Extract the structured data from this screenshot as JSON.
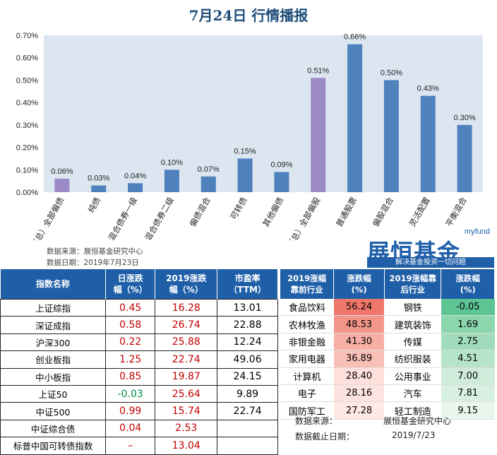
{
  "title": "7月24日  行情播报",
  "chart_data": {
    "type": "bar",
    "categories": [
      "（总）全部偏债",
      "纯债",
      "混合债券一级",
      "混合债券二级",
      "偏债混合",
      "可转债",
      "其他偏债",
      "（总）全部偏股",
      "普通股票",
      "偏股混合",
      "灵活配置",
      "平衡混合"
    ],
    "values": [
      0.06,
      0.03,
      0.04,
      0.1,
      0.07,
      0.15,
      0.09,
      0.51,
      0.66,
      0.5,
      0.43,
      0.3
    ],
    "data_labels": [
      "0.06%",
      "0.03%",
      "0.04%",
      "0.10%",
      "0.07%",
      "0.15%",
      "0.09%",
      "0.51%",
      "0.66%",
      "0.50%",
      "0.43%",
      "0.30%"
    ],
    "highlighted": [
      0,
      7
    ],
    "ylim": [
      0,
      0.7
    ],
    "yticks": [
      "0.00%",
      "0.10%",
      "0.20%",
      "0.30%",
      "0.40%",
      "0.50%",
      "0.60%",
      "0.70%"
    ],
    "grid": false,
    "colors": {
      "bar": "#4f81bd",
      "highlight": "#9c8ac6",
      "plot_bg": "#dce6f1"
    }
  },
  "source": {
    "line1": "数据来源：展恒基金研究中心",
    "line2": "数据日期：2019年7月23日"
  },
  "logo": {
    "small": "myfund",
    "main": "展恒基金",
    "sub": "解决基金投资一切问题"
  },
  "index_table": {
    "headers": [
      {
        "l1": "指数名称",
        "l2": ""
      },
      {
        "l1": "日涨跌",
        "l2": "幅（%）"
      },
      {
        "l1": "2019涨跌",
        "l2": "幅（%）"
      },
      {
        "l1": "市盈率",
        "l2": "（TTM）"
      }
    ],
    "rows": [
      {
        "name": "上证综指",
        "day": "0.45",
        "ytd": "16.28",
        "pe": "13.01",
        "day_color": "red"
      },
      {
        "name": "深证成指",
        "day": "0.58",
        "ytd": "26.74",
        "pe": "22.88",
        "day_color": "red"
      },
      {
        "name": "沪深300",
        "day": "0.22",
        "ytd": "25.88",
        "pe": "12.24",
        "day_color": "red"
      },
      {
        "name": "创业板指",
        "day": "1.25",
        "ytd": "22.74",
        "pe": "49.06",
        "day_color": "red"
      },
      {
        "name": "中小板指",
        "day": "0.85",
        "ytd": "19.87",
        "pe": "24.15",
        "day_color": "red"
      },
      {
        "name": "上证50",
        "day": "-0.03",
        "ytd": "25.64",
        "pe": "9.89",
        "day_color": "green"
      },
      {
        "name": "中证500",
        "day": "0.99",
        "ytd": "15.74",
        "pe": "22.74",
        "day_color": "red"
      },
      {
        "name": "中证综合债",
        "day": "0.04",
        "ytd": "2.53",
        "pe": "",
        "day_color": "red"
      },
      {
        "name": "标普中国可转债指数",
        "day": "–",
        "ytd": "13.04",
        "pe": "",
        "day_color": "red"
      }
    ]
  },
  "industry_table": {
    "headers": [
      {
        "l1": "2019涨幅",
        "l2": "靠前行业"
      },
      {
        "l1": "涨跌幅",
        "l2": "(%)"
      },
      {
        "l1": "2019涨幅靠",
        "l2": "后行业"
      },
      {
        "l1": "涨跌幅",
        "l2": "(%)"
      }
    ],
    "rows": [
      {
        "top": "食品饮料",
        "top_val": "56.24",
        "top_color": "#f0776b",
        "bot": "钢铁",
        "bot_val": "-0.05",
        "bot_color": "#5dc493"
      },
      {
        "top": "农林牧渔",
        "top_val": "48.53",
        "top_color": "#f4958a",
        "bot": "建筑装饰",
        "bot_val": "1.69",
        "bot_color": "#8cd6ad"
      },
      {
        "top": "非银金融",
        "top_val": "41.30",
        "top_color": "#f8b0a6",
        "bot": "传媒",
        "bot_val": "2.75",
        "bot_color": "#a0dcbb"
      },
      {
        "top": "家用电器",
        "top_val": "36.89",
        "top_color": "#f9c0b7",
        "bot": "纺织服装",
        "bot_val": "4.51",
        "bot_color": "#b6e4ca"
      },
      {
        "top": "计算机",
        "top_val": "28.40",
        "top_color": "#fde0dc",
        "bot": "公用事业",
        "bot_val": "7.00",
        "bot_color": "#cfecdb"
      },
      {
        "top": "电子",
        "top_val": "28.16",
        "top_color": "#fde3df",
        "bot": "汽车",
        "bot_val": "7.81",
        "bot_color": "#d8f0e2"
      },
      {
        "top": "国防军工",
        "top_val": "27.28",
        "top_color": "#fee9e6",
        "bot": "轻工制造",
        "bot_val": "9.15",
        "bot_color": "#e9f6ee"
      }
    ],
    "footer": {
      "source_label": "数据来源：",
      "source_value": "展恒基金研究中心",
      "date_label": "数据截止日期：",
      "date_value": "2019/7/23"
    }
  }
}
